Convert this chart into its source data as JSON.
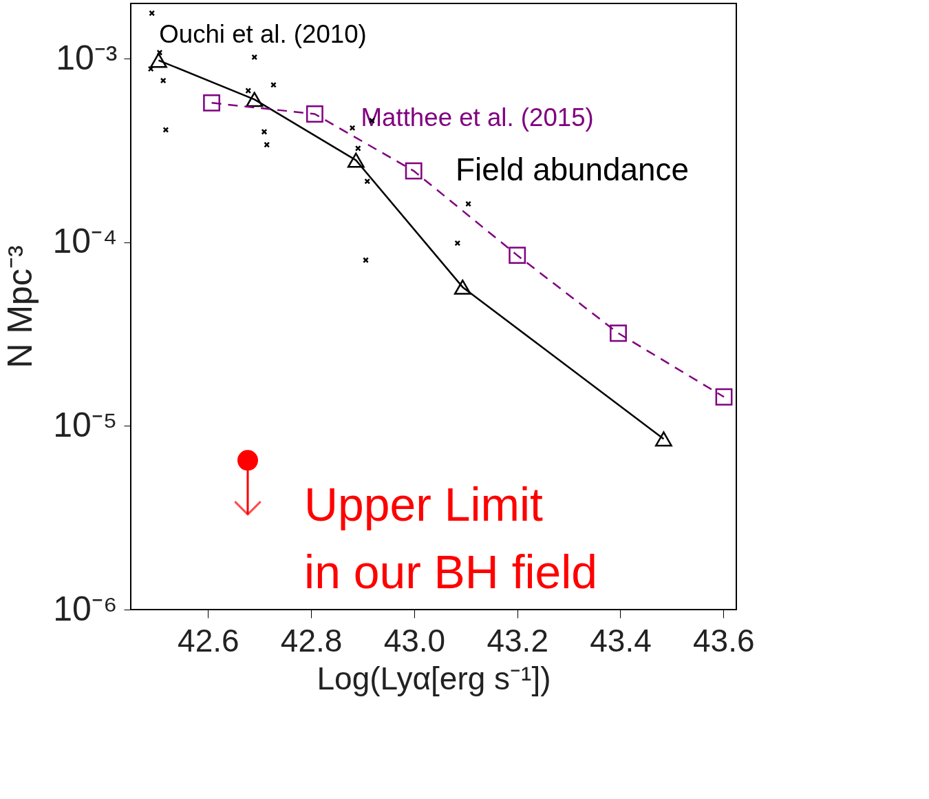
{
  "chart_data": {
    "type": "line",
    "xlabel": "Log(Lyα[erg s⁻¹])",
    "ylabel": "N Mpc⁻³",
    "log": "y",
    "grid": false,
    "xlim": [
      42.45,
      43.625
    ],
    "ylim": [
      1e-06,
      0.002
    ],
    "xticks": [
      42.6,
      42.8,
      {
        "value": 43.0,
        "label": "43.0"
      },
      43.2,
      43.4,
      43.6
    ],
    "yticks": [
      {
        "value": 1e-06,
        "label": "10⁻⁶"
      },
      {
        "value": 1e-05,
        "label": "10⁻⁵"
      },
      {
        "value": 0.0001,
        "label": "10⁻⁴"
      },
      {
        "value": 0.001,
        "label": "10⁻³"
      }
    ],
    "series": [
      {
        "name": "Ouchi et al. (2010)",
        "marker": "triangle",
        "line_style": "solid",
        "color": "#000000",
        "x": [
          42.504,
          42.69,
          42.887,
          43.094,
          43.484
        ],
        "values": [
          0.00098,
          0.0006,
          0.00028,
          5.7e-05,
          8.5e-06
        ]
      },
      {
        "name": "Matthee et al. (2015)",
        "marker": "square",
        "line_style": "dashed",
        "color": "#800080",
        "x": [
          42.607,
          42.807,
          42.999,
          43.2,
          43.396,
          43.601
        ],
        "values": [
          0.000575,
          0.0005,
          0.000245,
          8.5e-05,
          3.2e-05,
          1.44e-05
        ]
      },
      {
        "type": "scatter",
        "marker": "cross",
        "color": "#000000",
        "x": [
          42.491,
          42.506,
          42.489,
          42.513,
          42.518,
          42.69,
          42.678,
          42.727,
          42.709,
          42.714,
          42.88,
          42.891,
          42.918,
          42.909,
          42.906,
          43.105,
          43.084
        ],
        "values": [
          0.00177,
          0.00108,
          0.00088,
          0.00076,
          0.00041,
          0.00102,
          0.00067,
          0.00072,
          0.0004,
          0.00034,
          0.00042,
          0.000325,
          0.00046,
          0.000215,
          8e-05,
          0.000162,
          9.9e-05
        ]
      },
      {
        "type": "scatter",
        "marker": "circle",
        "color": "#ff0000",
        "x": [
          42.677
        ],
        "values": [
          6.5e-06
        ],
        "errors": [
          [
            3.3e-06,
            6.5e-06
          ]
        ]
      }
    ],
    "annotations": [
      "Field abundance",
      "Upper Limit\nin our BH field"
    ]
  }
}
